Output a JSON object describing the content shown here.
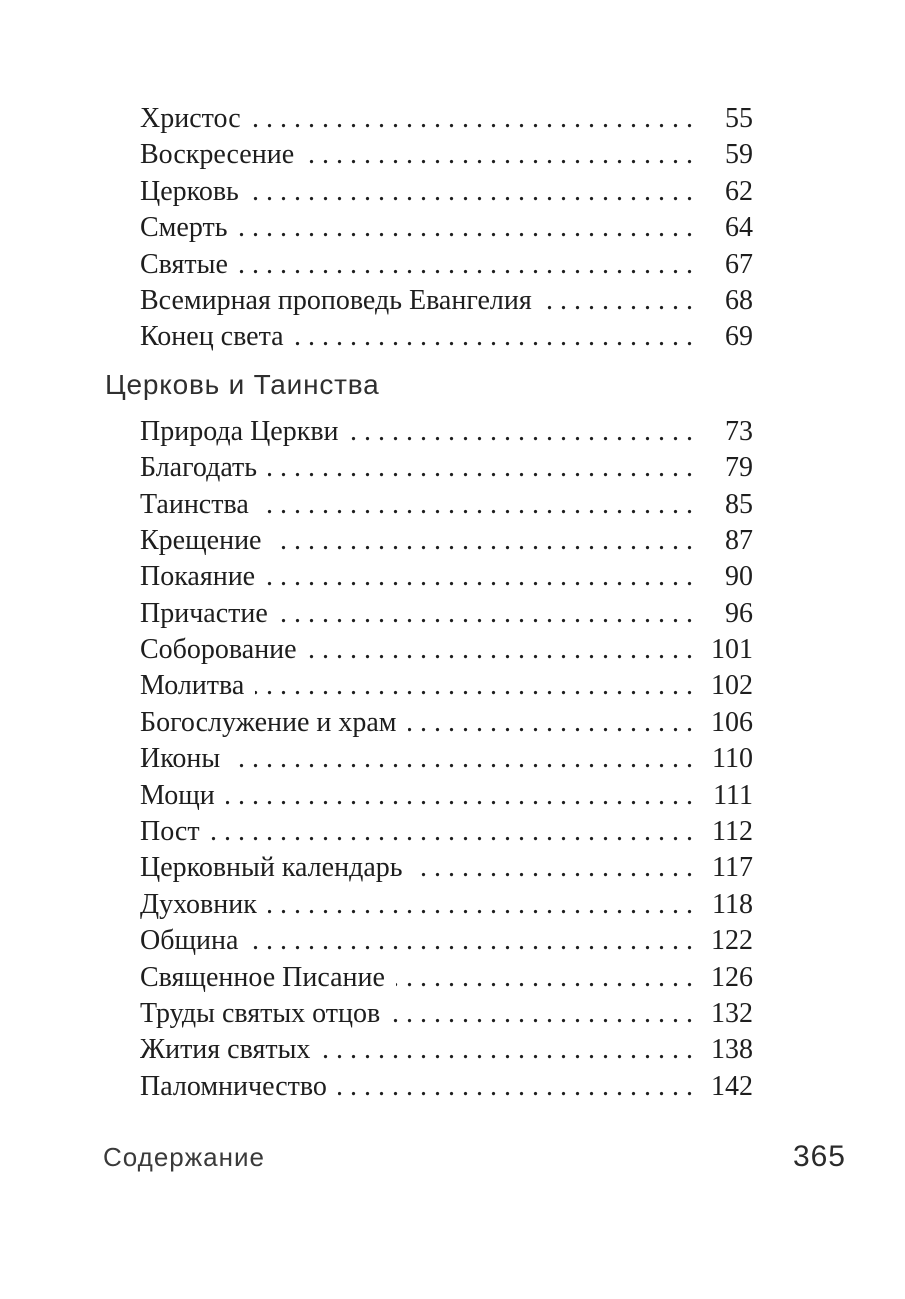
{
  "colors": {
    "background": "#ffffff",
    "text": "#1e1e1e",
    "heading": "#2f2f2f",
    "footer": "#3a3a3a"
  },
  "toc": {
    "groups": [
      {
        "heading": "",
        "entries": [
          {
            "title": "Христос",
            "page": "55"
          },
          {
            "title": "Воскресение",
            "page": "59"
          },
          {
            "title": "Церковь",
            "page": "62"
          },
          {
            "title": "Смерть",
            "page": "64"
          },
          {
            "title": "Святые",
            "page": "67"
          },
          {
            "title": "Всемирная проповедь Евангелия",
            "page": "68"
          },
          {
            "title": "Конец света",
            "page": "69"
          }
        ]
      },
      {
        "heading": "Церковь и Таинства",
        "entries": [
          {
            "title": "Природа Церкви",
            "page": "73"
          },
          {
            "title": "Благодать",
            "page": "79"
          },
          {
            "title": "Таинства",
            "page": "85"
          },
          {
            "title": "Крещение",
            "page": "87"
          },
          {
            "title": "Покаяние",
            "page": "90"
          },
          {
            "title": "Причастие",
            "page": "96"
          },
          {
            "title": "Соборование",
            "page": "101"
          },
          {
            "title": "Молитва",
            "page": "102"
          },
          {
            "title": "Богослужение и храм",
            "page": "106"
          },
          {
            "title": "Иконы",
            "page": "110"
          },
          {
            "title": "Мощи",
            "page": "111"
          },
          {
            "title": "Пост",
            "page": "112"
          },
          {
            "title": "Церковный календарь",
            "page": "117"
          },
          {
            "title": "Духовник",
            "page": "118"
          },
          {
            "title": "Община",
            "page": "122"
          },
          {
            "title": "Священное Писание",
            "page": "126"
          },
          {
            "title": "Труды святых отцов",
            "page": "132"
          },
          {
            "title": "Жития святых",
            "page": "138"
          },
          {
            "title": "Паломничество",
            "page": "142"
          }
        ]
      }
    ]
  },
  "footer": {
    "running_title": "Содержание",
    "page_number": "365"
  }
}
